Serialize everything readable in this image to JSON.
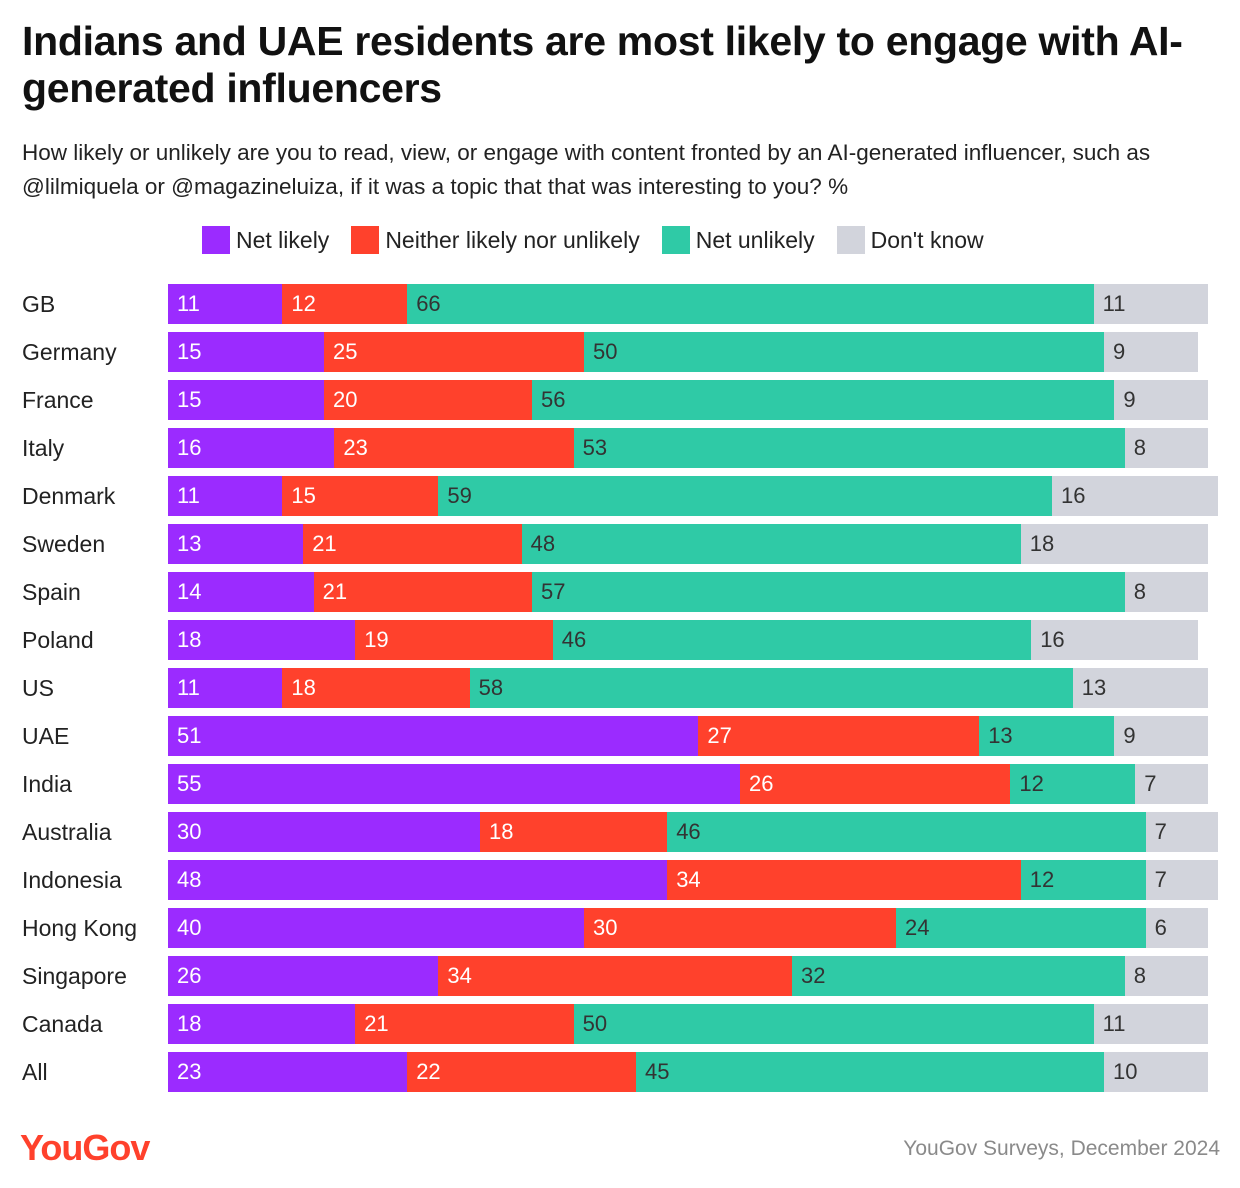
{
  "title": "Indians and UAE residents are most likely to engage with AI-generated influencers",
  "subtitle": "How likely or unlikely are you to read, view, or engage with content fronted by an AI-generated influencer, such as @lilmiquela or @magazineluiza, if it was a topic that that was interesting to you? %",
  "logo_text": "YouGov",
  "source": "YouGov Surveys, December 2024",
  "colors": {
    "net_likely": "#9b2bff",
    "neither": "#ff412c",
    "net_unlikely": "#2fcaa6",
    "dont_know": "#d2d4dc",
    "logo": "#ff412c"
  },
  "chart_data": {
    "type": "bar",
    "orientation": "horizontal",
    "stacked": true,
    "title": "Indians and UAE residents are most likely to engage with AI-generated influencers",
    "unit": "%",
    "legend_position": "top",
    "categories": [
      "GB",
      "Germany",
      "France",
      "Italy",
      "Denmark",
      "Sweden",
      "Spain",
      "Poland",
      "US",
      "UAE",
      "India",
      "Australia",
      "Indonesia",
      "Hong Kong",
      "Singapore",
      "Canada",
      "All"
    ],
    "series": [
      {
        "name": "Net likely",
        "key": "net_likely",
        "label_color": "light",
        "values": [
          11,
          15,
          15,
          16,
          11,
          13,
          14,
          18,
          11,
          51,
          55,
          30,
          48,
          40,
          26,
          18,
          23
        ]
      },
      {
        "name": "Neither likely nor unlikely",
        "key": "neither",
        "label_color": "light",
        "values": [
          12,
          25,
          20,
          23,
          15,
          21,
          21,
          19,
          18,
          27,
          26,
          18,
          34,
          30,
          34,
          21,
          22
        ]
      },
      {
        "name": "Net unlikely",
        "key": "net_unlikely",
        "label_color": "dark",
        "values": [
          66,
          50,
          56,
          53,
          59,
          48,
          57,
          46,
          58,
          13,
          12,
          46,
          12,
          24,
          32,
          50,
          45
        ]
      },
      {
        "name": "Don't know",
        "key": "dont_know",
        "label_color": "dark",
        "values": [
          11,
          9,
          9,
          8,
          16,
          18,
          8,
          16,
          13,
          9,
          7,
          7,
          7,
          6,
          8,
          11,
          10
        ]
      }
    ]
  }
}
